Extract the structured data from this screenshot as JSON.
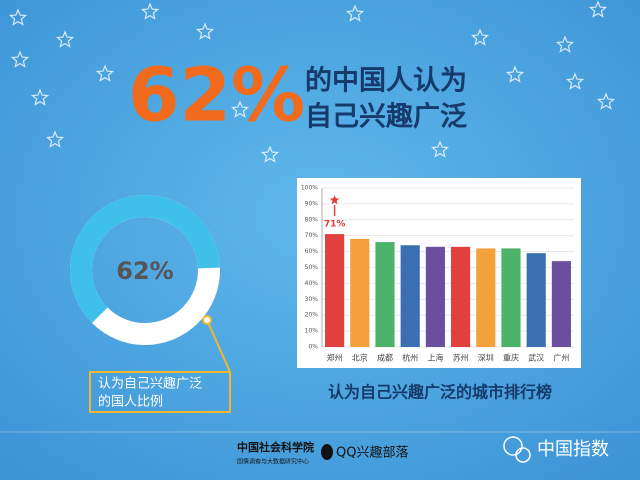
{
  "header": {
    "big": "62%",
    "line1": "的中国人认为",
    "line2": "自己兴趣广泛"
  },
  "callout": {
    "line1": "认为自己兴趣广泛",
    "line2": "的国人比例"
  },
  "chart_data": [
    {
      "type": "donut",
      "values": [
        62
      ],
      "value_labels": [
        "62%"
      ],
      "ylim": [
        0,
        100
      ],
      "color": "#3fc0ea",
      "track_color": "#ffffff"
    },
    {
      "type": "bar",
      "title": "认为自己兴趣广泛的城市排行榜",
      "categories": [
        "郑州",
        "北京",
        "成都",
        "杭州",
        "上海",
        "苏州",
        "深圳",
        "重庆",
        "武汉",
        "广州"
      ],
      "values": [
        71,
        68,
        66,
        64,
        63,
        63,
        62,
        62,
        59,
        54
      ],
      "value_labels": [
        "71%",
        null,
        null,
        null,
        null,
        null,
        null,
        null,
        null,
        null
      ],
      "colors": [
        "#e2403e",
        "#f2a13b",
        "#4bb36a",
        "#3a6fb1",
        "#6b4f9f",
        "#e2403e",
        "#f2a13b",
        "#4bb36a",
        "#3a6fb1",
        "#6b4f9f"
      ],
      "ylim": [
        0,
        100
      ],
      "yticks": [
        {
          "value": 0,
          "label": "0%"
        },
        {
          "value": 10,
          "label": "10%"
        },
        {
          "value": 20,
          "label": "20%"
        },
        {
          "value": 30,
          "label": "30%"
        },
        {
          "value": 40,
          "label": "40%"
        },
        {
          "value": 50,
          "label": "50%"
        },
        {
          "value": 60,
          "label": "60%"
        },
        {
          "value": 70,
          "label": "70%"
        },
        {
          "value": 80,
          "label": "80%"
        },
        {
          "value": 90,
          "label": "90%"
        },
        {
          "value": 100,
          "label": "100%"
        }
      ],
      "grid": true
    }
  ],
  "footer": {
    "org": "中国社会科学院",
    "org_sub": "国情调查与大数据研究中心",
    "qq": "QQ兴趣部落",
    "brand": "中国指数"
  }
}
